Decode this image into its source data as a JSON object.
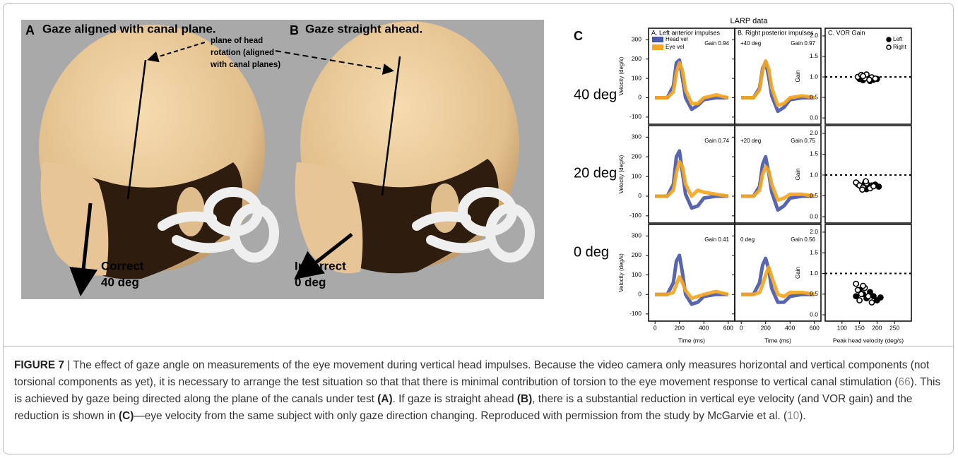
{
  "figure": {
    "panel_a_letter": "A",
    "panel_a_title": "Gaze aligned with canal plane.",
    "panel_b_letter": "B",
    "panel_b_title": "Gaze straight ahead.",
    "annotation_lines": [
      "plane of head",
      "rotation (aligned",
      "with canal planes)"
    ],
    "a_caption": [
      "Correct",
      "40 deg"
    ],
    "b_caption": [
      "Incorrect",
      "0 deg"
    ],
    "panel_c_letter": "C",
    "panel_c_title": "LARP data",
    "row_labels": [
      "40 deg",
      "20 deg",
      "0 deg"
    ]
  },
  "chart_data": [
    {
      "type": "line",
      "title": "A.  Left anterior impulses",
      "gain_label": "Gain 0.94",
      "ylabel": "Velocity (deg/s)",
      "legend": true,
      "x": [
        0,
        100,
        150,
        175,
        200,
        225,
        250,
        300,
        350,
        400,
        500,
        600
      ],
      "xlim": [
        -30,
        630
      ],
      "ylim": [
        -115,
        330
      ],
      "yticks": [
        -100,
        0,
        100,
        200,
        300
      ],
      "series": [
        {
          "name": "Head vel",
          "color": "#4a58a8",
          "values": [
            0,
            0,
            60,
            180,
            195,
            100,
            0,
            -60,
            -40,
            -10,
            0,
            0
          ]
        },
        {
          "name": "Eye vel",
          "color": "#f5a623",
          "values": [
            0,
            0,
            30,
            130,
            180,
            140,
            40,
            -30,
            -30,
            0,
            15,
            0
          ]
        }
      ]
    },
    {
      "type": "line",
      "title": "B.  Right posterior impulses",
      "condition_label": "+40 deg",
      "gain_label": "Gain 0.97",
      "x": [
        0,
        100,
        150,
        175,
        200,
        225,
        250,
        300,
        350,
        400,
        500,
        600
      ],
      "xlim": [
        -30,
        630
      ],
      "ylim": [
        -115,
        330
      ],
      "yticks": [
        -100,
        0,
        100,
        200,
        300
      ],
      "series": [
        {
          "color": "#4a58a8",
          "values": [
            0,
            0,
            50,
            150,
            185,
            110,
            10,
            -70,
            -50,
            -10,
            0,
            0
          ]
        },
        {
          "color": "#f5a623",
          "values": [
            0,
            0,
            40,
            140,
            190,
            150,
            50,
            -40,
            -30,
            0,
            10,
            0
          ]
        }
      ]
    },
    {
      "type": "scatter",
      "title": "C.       VOR Gain",
      "ylabel": "Gain",
      "legend": true,
      "hline": 1,
      "xlim": [
        60,
        290
      ],
      "ylim": [
        -0.05,
        2.05
      ],
      "yticks": [
        {
          "value": 0,
          "label": "0.0"
        },
        {
          "value": 0.5,
          "label": "0.5"
        },
        {
          "value": 1,
          "label": "1.0"
        },
        {
          "value": 1.5,
          "label": "1.5"
        },
        {
          "value": 2,
          "label": "2.0"
        }
      ],
      "series": [
        {
          "name": "Left",
          "marker": "filled",
          "x": [
            150,
            160,
            170,
            180,
            190,
            200,
            165,
            175
          ],
          "values": [
            0.95,
            0.92,
            0.98,
            0.9,
            0.93,
            0.95,
            1.0,
            0.97
          ]
        },
        {
          "name": "Right",
          "marker": "open",
          "x": [
            145,
            155,
            165,
            170,
            185,
            195,
            160,
            178
          ],
          "values": [
            1.0,
            1.05,
            0.97,
            1.06,
            0.99,
            0.96,
            1.02,
            0.93
          ]
        }
      ]
    },
    {
      "type": "line",
      "gain_label": "Gain 0.74",
      "ylabel": "Velocity (deg/s)",
      "x": [
        0,
        100,
        150,
        175,
        200,
        225,
        250,
        300,
        350,
        400,
        500,
        600
      ],
      "xlim": [
        -30,
        630
      ],
      "ylim": [
        -115,
        330
      ],
      "yticks": [
        -100,
        0,
        100,
        200,
        300
      ],
      "series": [
        {
          "color": "#4a58a8",
          "values": [
            0,
            0,
            60,
            200,
            230,
            120,
            10,
            -60,
            -50,
            -10,
            0,
            0
          ]
        },
        {
          "color": "#f5a623",
          "values": [
            0,
            0,
            30,
            120,
            175,
            150,
            60,
            0,
            30,
            20,
            10,
            0
          ]
        }
      ]
    },
    {
      "type": "line",
      "condition_label": "+20 deg",
      "gain_label": "Gain 0.75",
      "x": [
        0,
        100,
        150,
        175,
        200,
        225,
        250,
        300,
        350,
        400,
        500,
        600
      ],
      "xlim": [
        -30,
        630
      ],
      "ylim": [
        -115,
        330
      ],
      "yticks": [
        -100,
        0,
        100,
        200,
        300
      ],
      "series": [
        {
          "color": "#4a58a8",
          "values": [
            0,
            0,
            50,
            160,
            200,
            120,
            20,
            -70,
            -50,
            -10,
            0,
            0
          ]
        },
        {
          "color": "#f5a623",
          "values": [
            0,
            0,
            30,
            110,
            150,
            130,
            60,
            -20,
            -10,
            10,
            10,
            0
          ]
        }
      ]
    },
    {
      "type": "scatter",
      "ylabel": "Gain",
      "hline": 1,
      "xlim": [
        60,
        290
      ],
      "ylim": [
        -0.05,
        2.05
      ],
      "yticks": [
        {
          "value": 0,
          "label": "0.0"
        },
        {
          "value": 0.5,
          "label": "0.5"
        },
        {
          "value": 1,
          "label": "1.0"
        },
        {
          "value": 1.5,
          "label": "1.5"
        },
        {
          "value": 2,
          "label": "2.0"
        }
      ],
      "series": [
        {
          "marker": "filled",
          "x": [
            145,
            155,
            165,
            175,
            185,
            195,
            205,
            170
          ],
          "values": [
            0.78,
            0.72,
            0.8,
            0.7,
            0.75,
            0.77,
            0.72,
            0.66
          ]
        },
        {
          "marker": "open",
          "x": [
            140,
            150,
            160,
            170,
            180,
            190,
            158,
            168
          ],
          "values": [
            0.82,
            0.75,
            0.7,
            0.8,
            0.68,
            0.73,
            0.65,
            0.85
          ]
        }
      ]
    },
    {
      "type": "line",
      "gain_label": "Gain 0.41",
      "ylabel": "Velocity (deg/s)",
      "xlabel": "Time (ms)",
      "x": [
        0,
        100,
        150,
        175,
        200,
        225,
        250,
        300,
        350,
        400,
        500,
        600
      ],
      "xlim": [
        -30,
        630
      ],
      "ylim": [
        -115,
        330
      ],
      "yticks": [
        -100,
        0,
        100,
        200,
        300
      ],
      "xticks": [
        0,
        200,
        400,
        600
      ],
      "series": [
        {
          "color": "#4a58a8",
          "values": [
            0,
            0,
            60,
            170,
            200,
            110,
            0,
            -50,
            -40,
            -10,
            0,
            0
          ]
        },
        {
          "color": "#f5a623",
          "values": [
            0,
            0,
            10,
            50,
            90,
            60,
            20,
            -20,
            -10,
            0,
            15,
            0
          ]
        }
      ]
    },
    {
      "type": "line",
      "condition_label": "0 deg",
      "gain_label": "Gain 0.56",
      "xlabel": "Time (ms)",
      "x": [
        0,
        100,
        150,
        175,
        200,
        225,
        250,
        300,
        350,
        400,
        500,
        600
      ],
      "xlim": [
        -30,
        630
      ],
      "ylim": [
        -115,
        330
      ],
      "yticks": [
        -100,
        0,
        100,
        200,
        300
      ],
      "xticks": [
        0,
        200,
        400,
        600
      ],
      "series": [
        {
          "color": "#4a58a8",
          "values": [
            0,
            0,
            60,
            150,
            185,
            130,
            30,
            -40,
            -40,
            -10,
            0,
            0
          ]
        },
        {
          "color": "#f5a623",
          "values": [
            0,
            0,
            10,
            50,
            100,
            140,
            90,
            0,
            -10,
            10,
            10,
            0
          ]
        }
      ]
    },
    {
      "type": "scatter",
      "ylabel": "Gain",
      "hline": 1,
      "xlabel": "Peak head velocity (deg/s)",
      "xlim": [
        60,
        290
      ],
      "ylim": [
        -0.05,
        2.05
      ],
      "xticks": [
        100,
        150,
        200,
        250
      ],
      "yticks": [
        {
          "value": 0,
          "label": "0.0"
        },
        {
          "value": 0.5,
          "label": "0.5"
        },
        {
          "value": 1,
          "label": "1.0"
        },
        {
          "value": 1.5,
          "label": "1.5"
        },
        {
          "value": 2,
          "label": "2.0"
        }
      ],
      "series": [
        {
          "marker": "filled",
          "x": [
            140,
            150,
            160,
            170,
            180,
            200,
            210,
            190
          ],
          "values": [
            0.45,
            0.6,
            0.5,
            0.4,
            0.55,
            0.35,
            0.42,
            0.45
          ]
        },
        {
          "marker": "open",
          "x": [
            140,
            145,
            155,
            165,
            175,
            185,
            150,
            160
          ],
          "values": [
            0.75,
            0.6,
            0.5,
            0.65,
            0.45,
            0.3,
            0.35,
            0.7
          ]
        }
      ]
    }
  ],
  "caption": {
    "segments": [
      "FIGURE 7",
      " | The effect of gaze angle on measurements of the eye movement during vertical head impulses. Because the video camera only measures horizontal and vertical components (not torsional components as yet), it is necessary to arrange the test situation so that that there is minimal contribution of torsion to the eye movement response to vertical canal stimulation (",
      "66",
      "). This is achieved by gaze being directed along the plane of the canals under test ",
      "(A)",
      ". If gaze is straight ahead ",
      "(B)",
      ", there is a substantial reduction in vertical eye velocity (and VOR gain) and the reduction is shown in ",
      "(C)",
      "—eye velocity from the same subject with only gaze direction changing. Reproduced with permission from the study by McGarvie et al. (",
      "10",
      ")."
    ]
  }
}
